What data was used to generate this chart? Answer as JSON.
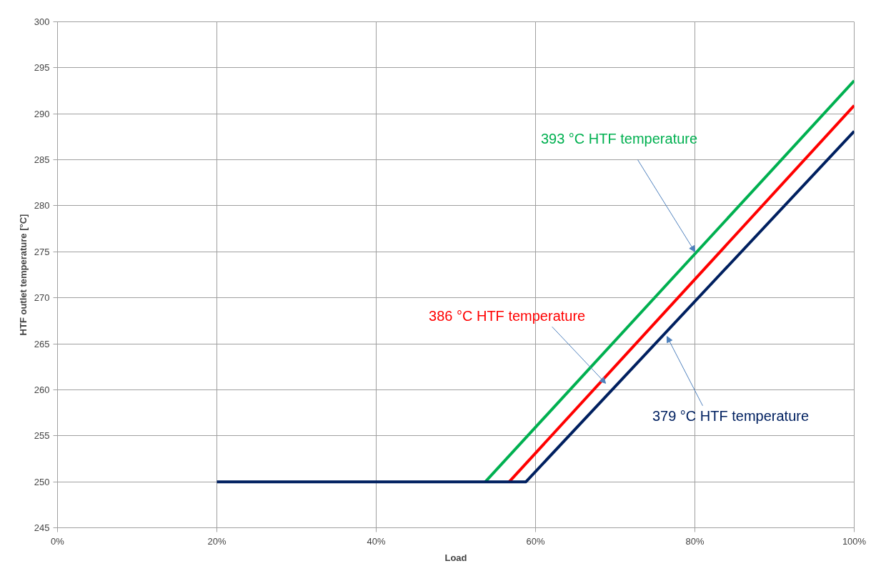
{
  "chart_data": {
    "type": "line",
    "xlabel": "Load",
    "ylabel": "HTF outlet temperature [°C]",
    "xlim": [
      0,
      100
    ],
    "ylim": [
      245,
      300
    ],
    "xticks": [
      {
        "value": 0,
        "label": "0%"
      },
      {
        "value": 20,
        "label": "20%"
      },
      {
        "value": 40,
        "label": "40%"
      },
      {
        "value": 60,
        "label": "60%"
      },
      {
        "value": 80,
        "label": "80%"
      },
      {
        "value": 100,
        "label": "100%"
      }
    ],
    "yticks": [
      245,
      250,
      255,
      260,
      265,
      270,
      275,
      280,
      285,
      290,
      295,
      300
    ],
    "grid": true,
    "marker": "none",
    "line_style": "solid",
    "series": [
      {
        "color": "#00b050",
        "x": [
          53.7,
          100
        ],
        "values": [
          250,
          293.6
        ]
      },
      {
        "color": "#ff0000",
        "x": [
          56.7,
          100
        ],
        "values": [
          250,
          290.9
        ]
      },
      {
        "color": "#002060",
        "x": [
          20,
          58.8,
          100
        ],
        "values": [
          250,
          250,
          288.1
        ]
      }
    ],
    "annotations": [
      {
        "text": "393 °C HTF temperature",
        "x": 80,
        "y": 275
      },
      {
        "text": "386 °C HTF temperature",
        "x": 68.8,
        "y": 260.7
      },
      {
        "text": "379 °C HTF temperature",
        "x": 76.5,
        "y": 265.8
      }
    ]
  }
}
